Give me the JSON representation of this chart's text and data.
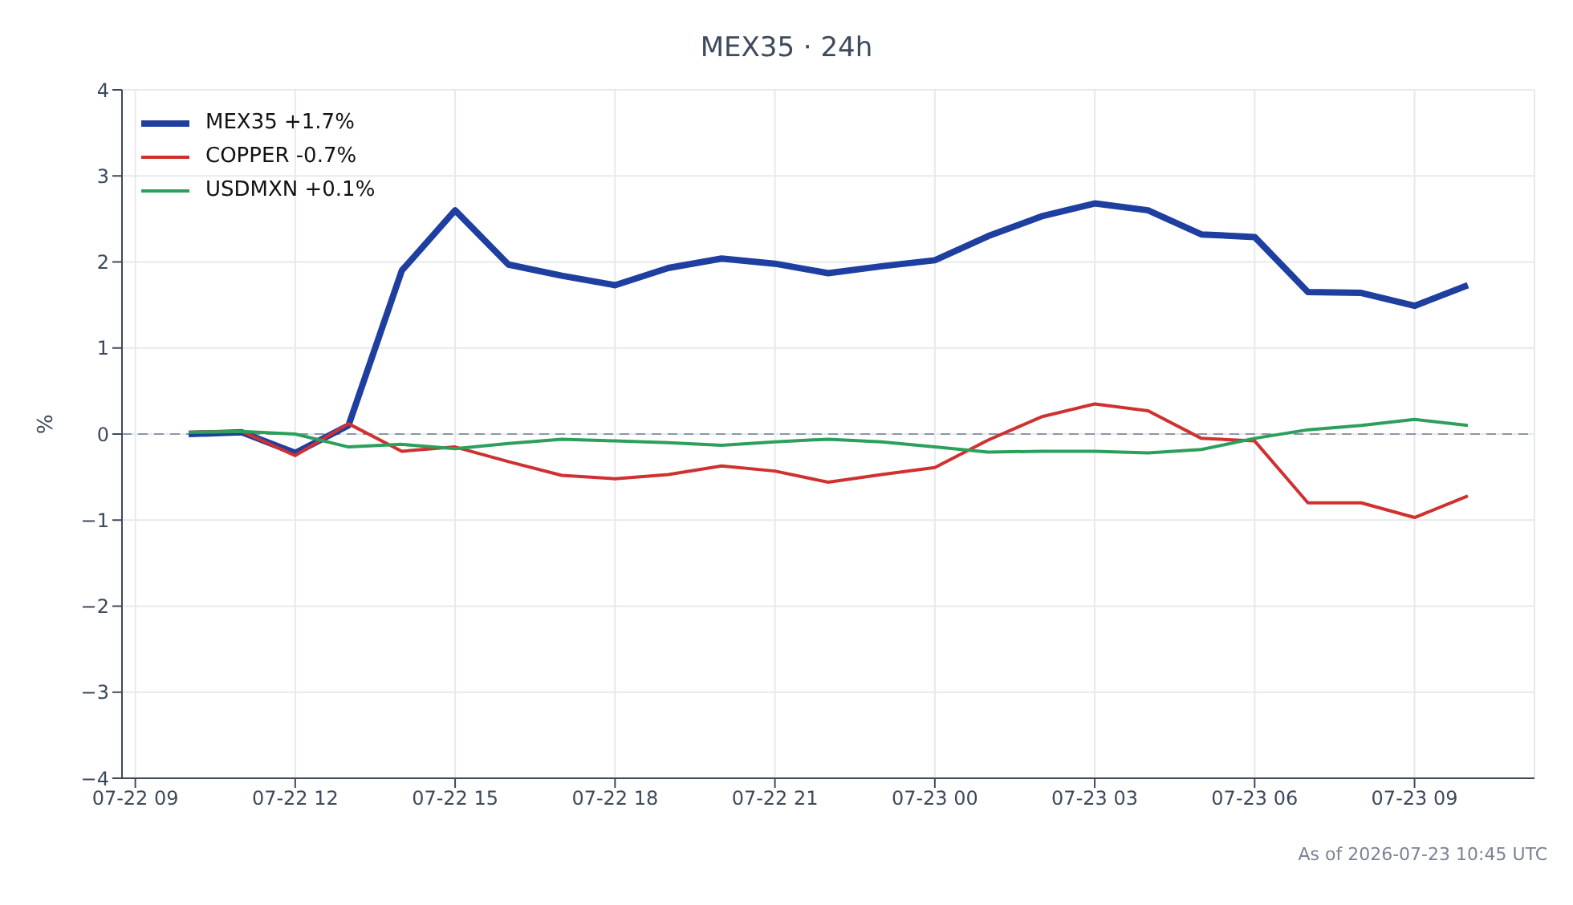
{
  "chart_data": {
    "type": "line",
    "title": "MEX35 · 24h",
    "ylabel": "%",
    "x": [
      "2026-07-22T10:00",
      "2026-07-22T11:00",
      "2026-07-22T12:00",
      "2026-07-22T13:00",
      "2026-07-22T14:00",
      "2026-07-22T15:00",
      "2026-07-22T16:00",
      "2026-07-22T17:00",
      "2026-07-22T18:00",
      "2026-07-22T19:00",
      "2026-07-22T20:00",
      "2026-07-22T21:00",
      "2026-07-22T22:00",
      "2026-07-22T23:00",
      "2026-07-23T00:00",
      "2026-07-23T01:00",
      "2026-07-23T02:00",
      "2026-07-23T03:00",
      "2026-07-23T04:00",
      "2026-07-23T05:00",
      "2026-07-23T06:00",
      "2026-07-23T07:00",
      "2026-07-23T08:00",
      "2026-07-23T09:00",
      "2026-07-23T10:00"
    ],
    "series": [
      {
        "name": "MEX35 +1.7%",
        "color": "#1f3fa0",
        "values": [
          0.0,
          0.02,
          -0.22,
          0.1,
          1.9,
          2.6,
          1.97,
          1.84,
          1.73,
          1.93,
          2.04,
          1.98,
          1.87,
          1.95,
          2.02,
          2.3,
          2.53,
          2.68,
          2.6,
          2.32,
          2.29,
          1.65,
          1.64,
          1.49,
          1.73
        ]
      },
      {
        "name": "COPPER -0.7%",
        "color": "#d03030",
        "values": [
          0.02,
          0.03,
          -0.25,
          0.12,
          -0.2,
          -0.15,
          -0.32,
          -0.48,
          -0.52,
          -0.47,
          -0.37,
          -0.43,
          -0.56,
          -0.47,
          -0.39,
          -0.07,
          0.2,
          0.35,
          0.27,
          -0.05,
          -0.08,
          -0.8,
          -0.8,
          -0.97,
          -0.72
        ]
      },
      {
        "name": "USDMXN +0.1%",
        "color": "#2ca05a",
        "values": [
          0.02,
          0.03,
          0.0,
          -0.15,
          -0.12,
          -0.17,
          -0.11,
          -0.06,
          -0.08,
          -0.1,
          -0.13,
          -0.09,
          -0.06,
          -0.09,
          -0.15,
          -0.21,
          -0.2,
          -0.2,
          -0.22,
          -0.18,
          -0.05,
          0.05,
          0.1,
          0.17,
          0.1
        ]
      }
    ],
    "xlim": [
      "2026-07-22T08:45",
      "2026-07-23T11:15"
    ],
    "xticks": [
      {
        "value": "2026-07-22T09:00",
        "label": "07-22 09"
      },
      {
        "value": "2026-07-22T12:00",
        "label": "07-22 12"
      },
      {
        "value": "2026-07-22T15:00",
        "label": "07-22 15"
      },
      {
        "value": "2026-07-22T18:00",
        "label": "07-22 18"
      },
      {
        "value": "2026-07-22T21:00",
        "label": "07-22 21"
      },
      {
        "value": "2026-07-23T00:00",
        "label": "07-23 00"
      },
      {
        "value": "2026-07-23T03:00",
        "label": "07-23 03"
      },
      {
        "value": "2026-07-23T06:00",
        "label": "07-23 06"
      },
      {
        "value": "2026-07-23T09:00",
        "label": "07-23 09"
      }
    ],
    "ylim": [
      -4,
      4
    ],
    "yticks": [
      -4,
      -3,
      -2,
      -1,
      0,
      1,
      2,
      3,
      4
    ],
    "ref_lines": [
      {
        "axis": "y",
        "value": 0,
        "color": "#8a96a8",
        "line_style": "dashed"
      }
    ],
    "grid": true,
    "legend": "top left",
    "marker": "none",
    "line_style": "solid",
    "annotations": [
      "As of 2026-07-23 10:45 UTC"
    ]
  }
}
